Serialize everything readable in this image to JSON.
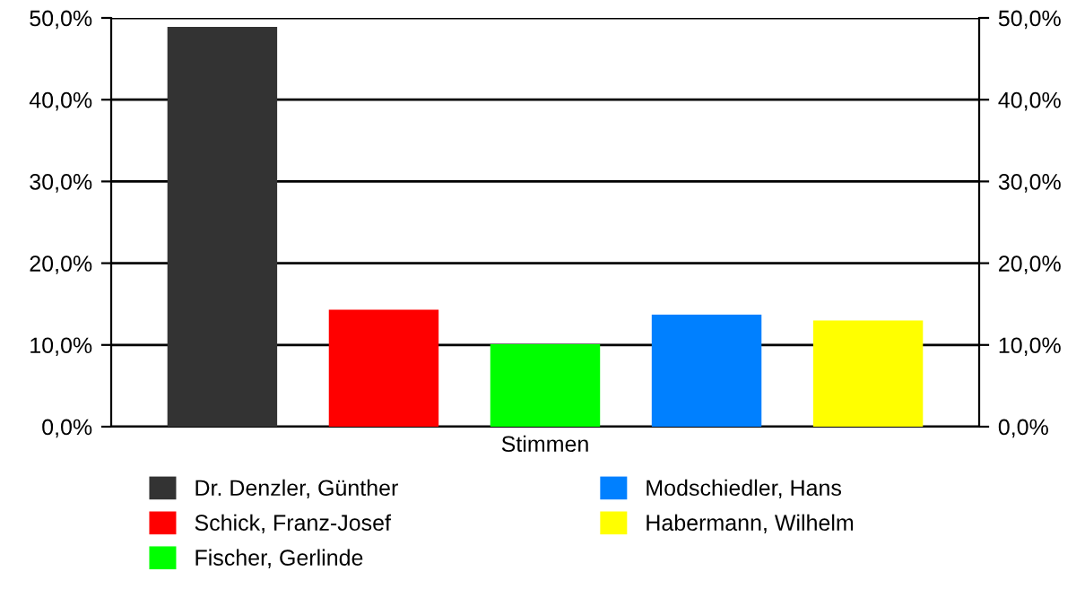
{
  "chart_data": {
    "type": "bar",
    "categories": [
      "Stimmen"
    ],
    "series": [
      {
        "name": "Dr. Denzler, Günther",
        "color": "#333333",
        "values": [
          48.9
        ]
      },
      {
        "name": "Schick, Franz-Josef",
        "color": "#ff0000",
        "values": [
          14.3
        ]
      },
      {
        "name": "Fischer, Gerlinde",
        "color": "#00ff00",
        "values": [
          10.1
        ]
      },
      {
        "name": "Modschiedler, Hans",
        "color": "#0080ff",
        "values": [
          13.7
        ]
      },
      {
        "name": "Habermann, Wilhelm",
        "color": "#ffff00",
        "values": [
          13.0
        ]
      }
    ],
    "ylim": [
      0,
      50
    ],
    "yticks": [
      {
        "value": 0,
        "label": "0,0%"
      },
      {
        "value": 10,
        "label": "10,0%"
      },
      {
        "value": 20,
        "label": "20,0%"
      },
      {
        "value": 30,
        "label": "30,0%"
      },
      {
        "value": 40,
        "label": "40,0%"
      },
      {
        "value": 50,
        "label": "50,0%"
      }
    ],
    "grid": "y",
    "legend": "bottom"
  }
}
